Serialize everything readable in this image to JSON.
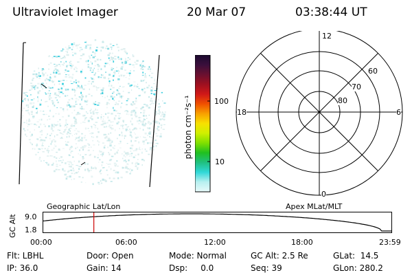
{
  "header": {
    "title": "Ultraviolet Imager",
    "date": "20 Mar 07",
    "time": "03:38:44 UT"
  },
  "colorbar": {
    "unit_label": "photon cm⁻²s⁻¹",
    "tick_labels": [
      "100",
      "10"
    ],
    "colors": [
      "#1b0a2e",
      "#3a0f3c",
      "#6a1030",
      "#9e1020",
      "#d01818",
      "#f05000",
      "#f8a000",
      "#f8e000",
      "#d0f000",
      "#80e000",
      "#20c020",
      "#20c080",
      "#30d8d8",
      "#b8f0f0",
      "#e8fafa"
    ]
  },
  "polar": {
    "mlt_labels": {
      "top": "12",
      "right": "6",
      "bottom": "0",
      "left": "18"
    },
    "lat_labels": [
      "60",
      "70",
      "80"
    ]
  },
  "altitude_strip": {
    "left_label": "Geographic Lat/Lon",
    "right_label": "Apex  MLat/MLT",
    "axis_title": "GC Alt",
    "y_ticks": [
      "9.0",
      "1.8"
    ],
    "x_ticks": [
      "00:00",
      "06:00",
      "12:00",
      "18:00",
      "23:59"
    ],
    "current_time_fraction": 0.145
  },
  "info": {
    "flt": "Flt: LBHL",
    "ip": "IP: 36.0",
    "door": "Door: Open",
    "gain": "Gain: 14",
    "mode": "Mode: Normal",
    "dsp": "Dsp:     0.0",
    "gcalt": "GC Alt: 2.5 Re",
    "seq": "Seq: 39",
    "glat": "GLat:  14.5",
    "glon": "GLon: 280.2"
  }
}
